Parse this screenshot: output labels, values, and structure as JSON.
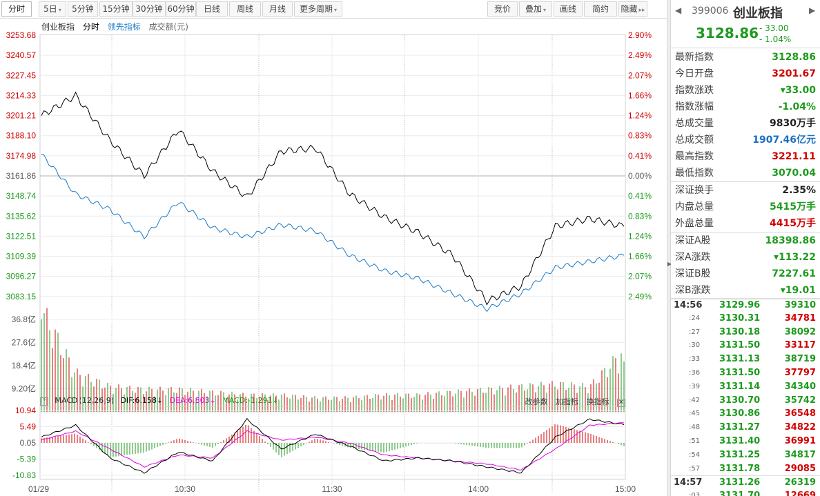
{
  "toolbar": {
    "left": [
      {
        "label": "分时",
        "active": true,
        "dd": false
      },
      {
        "label": "5日",
        "dd": true
      },
      {
        "label": "5分钟"
      },
      {
        "label": "15分钟"
      },
      {
        "label": "30分钟"
      },
      {
        "label": "60分钟"
      },
      {
        "label": "日线"
      },
      {
        "label": "周线"
      },
      {
        "label": "月线"
      },
      {
        "label": "更多周期",
        "dd": true
      }
    ],
    "right": [
      {
        "label": "竞价"
      },
      {
        "label": "叠加",
        "dd": true
      },
      {
        "label": "画线"
      },
      {
        "label": "简约"
      },
      {
        "label": "隐藏",
        "arrow": "▸▸"
      }
    ]
  },
  "legend": {
    "name": "创业板指",
    "mode": "分时",
    "lead": "领先指标",
    "volume": "成交额(元)"
  },
  "price_axis": {
    "left": [
      "3253.68",
      "3240.57",
      "3227.45",
      "3214.33",
      "3201.21",
      "3188.10",
      "3174.98",
      "3161.86",
      "3148.74",
      "3135.62",
      "3122.51",
      "3109.39",
      "3096.27",
      "3083.15"
    ],
    "right": [
      "2.90%",
      "2.49%",
      "2.07%",
      "1.66%",
      "1.24%",
      "0.83%",
      "0.41%",
      "0.00%",
      "0.41%",
      "0.83%",
      "1.24%",
      "1.66%",
      "2.07%",
      "2.49%"
    ]
  },
  "volume_axis": [
    "36.8亿",
    "27.6亿",
    "18.4亿",
    "9.20亿"
  ],
  "macd_axis": [
    "10.94",
    "5.49",
    "0.05",
    "-5.39",
    "-10.83"
  ],
  "time_axis": [
    "01/29",
    "10:30",
    "11:30",
    "14:00",
    "15:00"
  ],
  "macd": {
    "label": "MACD",
    "params": "(12,26,9)",
    "dif": "DIF:6.158↓",
    "dea": "DEA:6.803↓",
    "macd": "MACD:-1.291↓",
    "actions": [
      "改参数",
      "加指标",
      "换指标"
    ]
  },
  "colors": {
    "up": "#d20000",
    "down": "#1e9a1e",
    "price_line": "#000000",
    "lead_line": "#1a7ac8",
    "dea_line": "#e000e0",
    "axis_red": "#d20000",
    "axis_green": "#1e9a1e"
  },
  "quote": {
    "code": "399006",
    "name": "创业板指",
    "price": "3128.86",
    "change": "- 33.00",
    "change_pct": "- 1.04%",
    "prev_icon": "triangle-left",
    "next_icon": "triangle-right",
    "rows1": [
      {
        "k": "最新指数",
        "v": "3128.86",
        "c": "green"
      },
      {
        "k": "今日开盘",
        "v": "3201.67",
        "c": "red"
      },
      {
        "k": "指数涨跌",
        "v": "▾33.00",
        "c": "green"
      },
      {
        "k": "指数涨幅",
        "v": "-1.04%",
        "c": "green"
      },
      {
        "k": "总成交量",
        "v": "9830万手",
        "c": "dark"
      },
      {
        "k": "总成交额",
        "v": "1907.46亿元",
        "c": "blue"
      },
      {
        "k": "最高指数",
        "v": "3221.11",
        "c": "red"
      },
      {
        "k": "最低指数",
        "v": "3070.04",
        "c": "green"
      }
    ],
    "rows2": [
      {
        "k": "深证换手",
        "v": "2.35%",
        "c": "dark"
      },
      {
        "k": "内盘总量",
        "v": "5415万手",
        "c": "green"
      },
      {
        "k": "外盘总量",
        "v": "4415万手",
        "c": "red"
      }
    ],
    "rows3": [
      {
        "k": "深证A股",
        "v": "18398.86",
        "c": "green"
      },
      {
        "k": "深A涨跌",
        "v": "▾113.22",
        "c": "green"
      },
      {
        "k": "深证B股",
        "v": "7227.61",
        "c": "green"
      },
      {
        "k": "深B涨跌",
        "v": "▾19.01",
        "c": "green"
      }
    ]
  },
  "ticks": [
    {
      "t": "14:56",
      "p": "3129.96",
      "v": "39310",
      "c": "green",
      "full": true
    },
    {
      "t": ":24",
      "p": "3130.31",
      "v": "34781",
      "c": "red"
    },
    {
      "t": ":27",
      "p": "3130.18",
      "v": "38092",
      "c": "green"
    },
    {
      "t": ":30",
      "p": "3131.50",
      "v": "33117",
      "c": "red"
    },
    {
      "t": ":33",
      "p": "3131.13",
      "v": "38719",
      "c": "green"
    },
    {
      "t": ":36",
      "p": "3131.50",
      "v": "37797",
      "c": "red"
    },
    {
      "t": ":39",
      "p": "3131.14",
      "v": "34340",
      "c": "green"
    },
    {
      "t": ":42",
      "p": "3130.70",
      "v": "35742",
      "c": "green"
    },
    {
      "t": ":45",
      "p": "3130.86",
      "v": "36548",
      "c": "red"
    },
    {
      "t": ":48",
      "p": "3131.27",
      "v": "34822",
      "c": "red"
    },
    {
      "t": ":51",
      "p": "3131.40",
      "v": "36991",
      "c": "red"
    },
    {
      "t": ":54",
      "p": "3131.25",
      "v": "34817",
      "c": "green"
    },
    {
      "t": ":57",
      "p": "3131.78",
      "v": "29085",
      "c": "red"
    },
    {
      "t": "14:57",
      "p": "3131.26",
      "v": "26319",
      "c": "green",
      "full": true
    },
    {
      "t": ":03",
      "p": "3131.70",
      "v": "12669",
      "c": "red"
    }
  ],
  "chart_data": {
    "type": "line",
    "x": [
      "09:30",
      "09:45",
      "10:00",
      "10:15",
      "10:30",
      "10:45",
      "11:00",
      "11:15",
      "11:30",
      "13:15",
      "13:30",
      "13:45",
      "14:00",
      "14:10",
      "14:15",
      "14:30",
      "14:45",
      "15:00"
    ],
    "series": [
      {
        "values": [
          3201.2,
          3214.3,
          3185.0,
          3162.0,
          3192.0,
          3165.0,
          3148.0,
          3178.0,
          3180.0,
          3150.0,
          3135.0,
          3125.0,
          3110.0,
          3080.0,
          3090.0,
          3129.0,
          3134.0,
          3128.9
        ]
      },
      {
        "values": [
          3176.0,
          3150.0,
          3140.0,
          3122.0,
          3145.0,
          3128.0,
          3122.0,
          3130.0,
          3126.0,
          3110.0,
          3100.0,
          3095.0,
          3085.0,
          3075.0,
          3085.0,
          3102.0,
          3106.0,
          3110.0
        ]
      }
    ],
    "volume_series": {
      "unit": "亿",
      "values": [
        36.8,
        14,
        9,
        8,
        8,
        7,
        6,
        6,
        5,
        5,
        6,
        6,
        7,
        8,
        9,
        10,
        9,
        22
      ]
    },
    "macd_series": {
      "dif": [
        2,
        6,
        -5,
        -10,
        -3,
        -6,
        8,
        -2,
        3,
        -1,
        -6,
        -5,
        -6,
        -8,
        -10,
        2,
        8,
        6.158
      ],
      "dea": [
        1,
        4,
        -2,
        -8,
        -4,
        -5,
        4,
        1,
        2,
        0,
        -4,
        -5,
        -6,
        -7,
        -9,
        -2,
        6,
        6.803
      ]
    },
    "ylim": [
      3070.04,
      3253.68
    ]
  }
}
